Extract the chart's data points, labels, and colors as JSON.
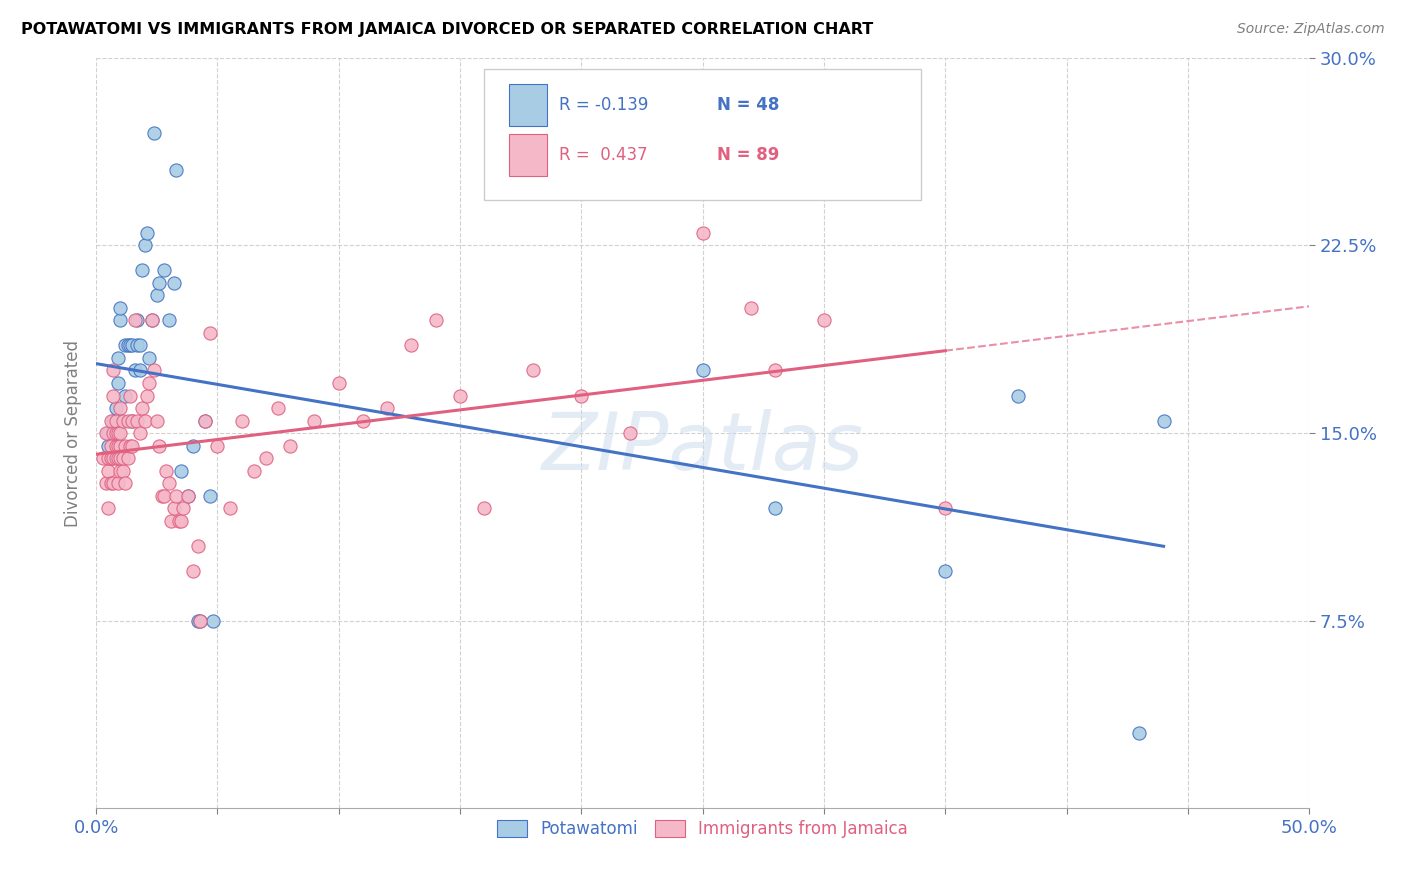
{
  "title": "POTAWATOMI VS IMMIGRANTS FROM JAMAICA DIVORCED OR SEPARATED CORRELATION CHART",
  "source": "Source: ZipAtlas.com",
  "ylabel_label": "Divorced or Separated",
  "legend_R_blue": "R = -0.139",
  "legend_N_blue": "N = 48",
  "legend_R_pink": "R =  0.437",
  "legend_N_pink": "N = 89",
  "color_blue": "#a8cce4",
  "color_pink": "#f4b8c8",
  "color_blue_line": "#4472c4",
  "color_pink_line": "#e06080",
  "color_blue_text": "#4472c4",
  "color_pink_text": "#e06080",
  "watermark": "ZIPatlas",
  "background": "#ffffff",
  "xlim": [
    0.0,
    0.5
  ],
  "ylim": [
    0.0,
    0.3
  ],
  "blue_points": [
    [
      0.005,
      0.145
    ],
    [
      0.005,
      0.15
    ],
    [
      0.006,
      0.14
    ],
    [
      0.007,
      0.155
    ],
    [
      0.008,
      0.15
    ],
    [
      0.008,
      0.16
    ],
    [
      0.009,
      0.17
    ],
    [
      0.009,
      0.18
    ],
    [
      0.01,
      0.155
    ],
    [
      0.01,
      0.195
    ],
    [
      0.01,
      0.2
    ],
    [
      0.012,
      0.165
    ],
    [
      0.012,
      0.185
    ],
    [
      0.013,
      0.185
    ],
    [
      0.014,
      0.185
    ],
    [
      0.015,
      0.155
    ],
    [
      0.015,
      0.185
    ],
    [
      0.016,
      0.175
    ],
    [
      0.017,
      0.195
    ],
    [
      0.017,
      0.185
    ],
    [
      0.018,
      0.175
    ],
    [
      0.018,
      0.185
    ],
    [
      0.019,
      0.215
    ],
    [
      0.02,
      0.225
    ],
    [
      0.021,
      0.23
    ],
    [
      0.022,
      0.18
    ],
    [
      0.023,
      0.195
    ],
    [
      0.024,
      0.27
    ],
    [
      0.025,
      0.205
    ],
    [
      0.026,
      0.21
    ],
    [
      0.028,
      0.215
    ],
    [
      0.03,
      0.195
    ],
    [
      0.032,
      0.21
    ],
    [
      0.033,
      0.255
    ],
    [
      0.035,
      0.135
    ],
    [
      0.038,
      0.125
    ],
    [
      0.04,
      0.145
    ],
    [
      0.042,
      0.075
    ],
    [
      0.043,
      0.075
    ],
    [
      0.045,
      0.155
    ],
    [
      0.047,
      0.125
    ],
    [
      0.048,
      0.075
    ],
    [
      0.25,
      0.175
    ],
    [
      0.28,
      0.12
    ],
    [
      0.35,
      0.095
    ],
    [
      0.38,
      0.165
    ],
    [
      0.43,
      0.03
    ],
    [
      0.44,
      0.155
    ]
  ],
  "pink_points": [
    [
      0.003,
      0.14
    ],
    [
      0.004,
      0.13
    ],
    [
      0.004,
      0.15
    ],
    [
      0.005,
      0.12
    ],
    [
      0.005,
      0.135
    ],
    [
      0.005,
      0.14
    ],
    [
      0.006,
      0.13
    ],
    [
      0.006,
      0.14
    ],
    [
      0.006,
      0.145
    ],
    [
      0.006,
      0.155
    ],
    [
      0.007,
      0.13
    ],
    [
      0.007,
      0.14
    ],
    [
      0.007,
      0.15
    ],
    [
      0.007,
      0.165
    ],
    [
      0.007,
      0.175
    ],
    [
      0.008,
      0.14
    ],
    [
      0.008,
      0.145
    ],
    [
      0.008,
      0.15
    ],
    [
      0.008,
      0.155
    ],
    [
      0.009,
      0.13
    ],
    [
      0.009,
      0.14
    ],
    [
      0.009,
      0.145
    ],
    [
      0.009,
      0.15
    ],
    [
      0.01,
      0.135
    ],
    [
      0.01,
      0.14
    ],
    [
      0.01,
      0.145
    ],
    [
      0.01,
      0.15
    ],
    [
      0.01,
      0.16
    ],
    [
      0.011,
      0.135
    ],
    [
      0.011,
      0.14
    ],
    [
      0.011,
      0.155
    ],
    [
      0.012,
      0.13
    ],
    [
      0.012,
      0.145
    ],
    [
      0.013,
      0.14
    ],
    [
      0.013,
      0.155
    ],
    [
      0.014,
      0.145
    ],
    [
      0.014,
      0.165
    ],
    [
      0.015,
      0.145
    ],
    [
      0.015,
      0.155
    ],
    [
      0.016,
      0.195
    ],
    [
      0.017,
      0.155
    ],
    [
      0.018,
      0.15
    ],
    [
      0.019,
      0.16
    ],
    [
      0.02,
      0.155
    ],
    [
      0.021,
      0.165
    ],
    [
      0.022,
      0.17
    ],
    [
      0.023,
      0.195
    ],
    [
      0.024,
      0.175
    ],
    [
      0.025,
      0.155
    ],
    [
      0.026,
      0.145
    ],
    [
      0.027,
      0.125
    ],
    [
      0.028,
      0.125
    ],
    [
      0.029,
      0.135
    ],
    [
      0.03,
      0.13
    ],
    [
      0.031,
      0.115
    ],
    [
      0.032,
      0.12
    ],
    [
      0.033,
      0.125
    ],
    [
      0.034,
      0.115
    ],
    [
      0.035,
      0.115
    ],
    [
      0.036,
      0.12
    ],
    [
      0.038,
      0.125
    ],
    [
      0.04,
      0.095
    ],
    [
      0.042,
      0.105
    ],
    [
      0.043,
      0.075
    ],
    [
      0.045,
      0.155
    ],
    [
      0.047,
      0.19
    ],
    [
      0.05,
      0.145
    ],
    [
      0.055,
      0.12
    ],
    [
      0.06,
      0.155
    ],
    [
      0.065,
      0.135
    ],
    [
      0.07,
      0.14
    ],
    [
      0.075,
      0.16
    ],
    [
      0.08,
      0.145
    ],
    [
      0.09,
      0.155
    ],
    [
      0.1,
      0.17
    ],
    [
      0.11,
      0.155
    ],
    [
      0.12,
      0.16
    ],
    [
      0.13,
      0.185
    ],
    [
      0.14,
      0.195
    ],
    [
      0.15,
      0.165
    ],
    [
      0.16,
      0.12
    ],
    [
      0.18,
      0.175
    ],
    [
      0.2,
      0.165
    ],
    [
      0.22,
      0.15
    ],
    [
      0.25,
      0.23
    ],
    [
      0.27,
      0.2
    ],
    [
      0.28,
      0.175
    ],
    [
      0.3,
      0.195
    ],
    [
      0.35,
      0.12
    ]
  ]
}
